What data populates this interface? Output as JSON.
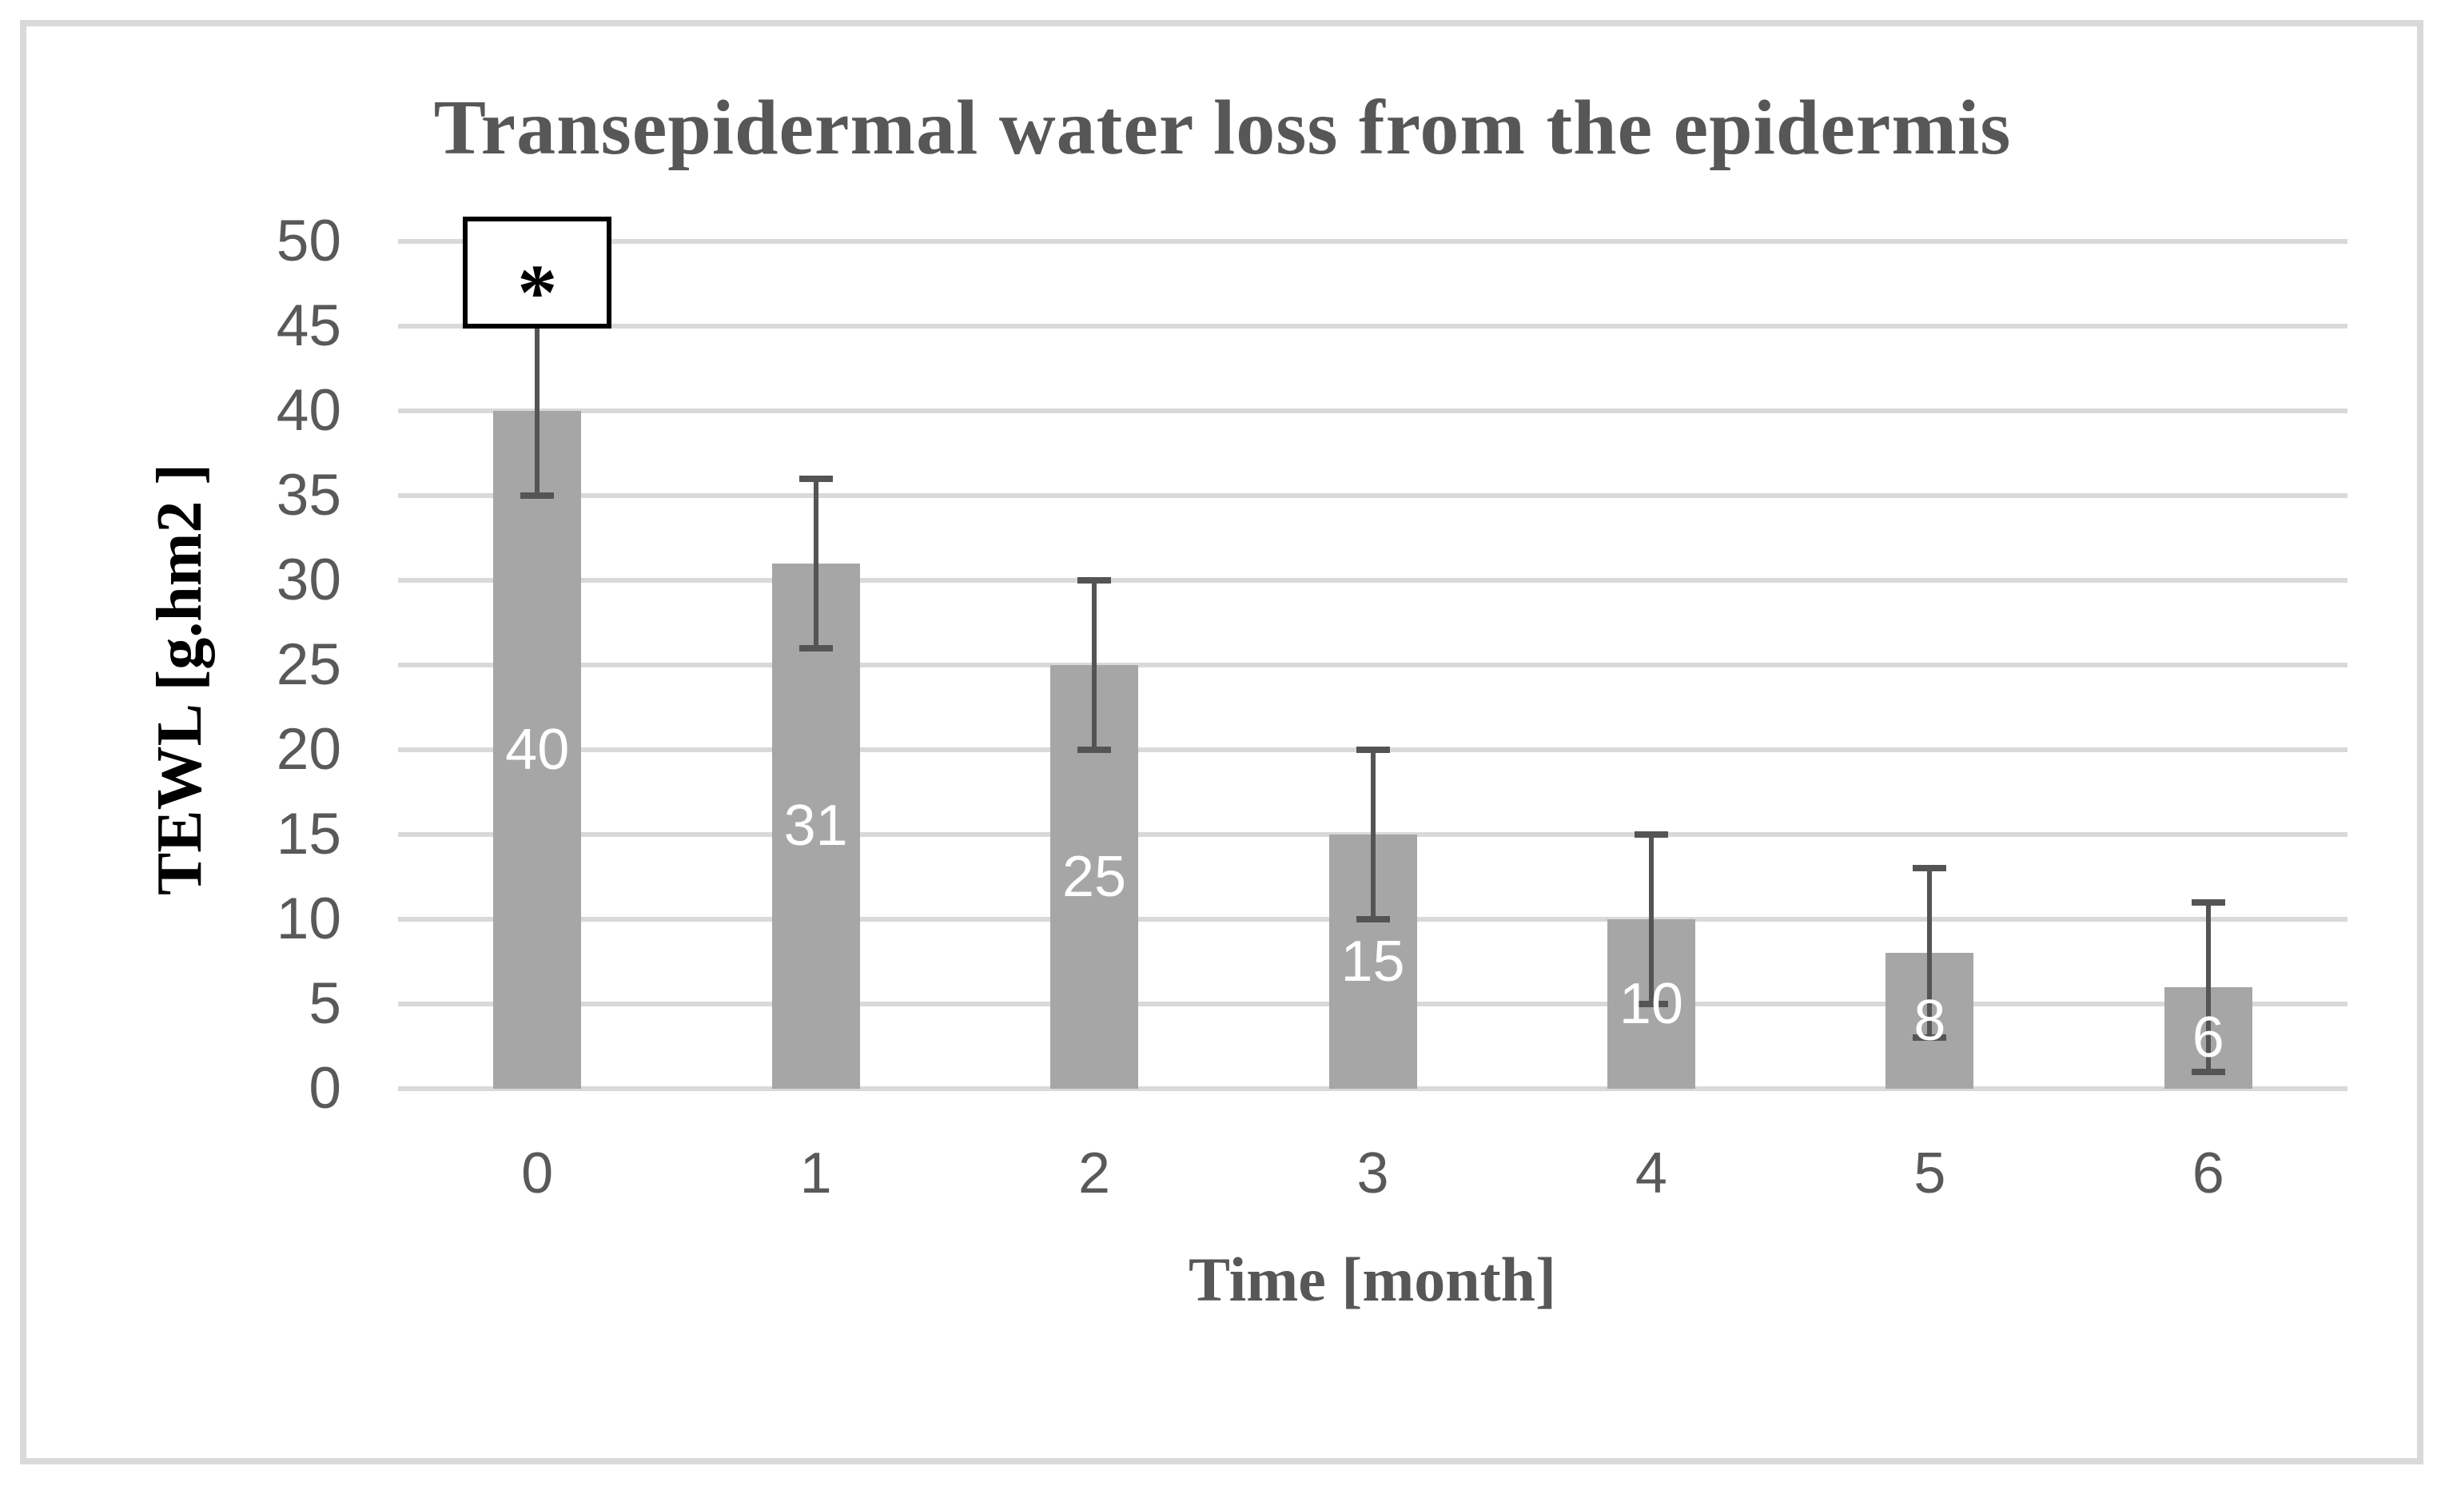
{
  "chart_data": {
    "type": "bar",
    "title": "Transepidermal water loss from the epidermis",
    "xlabel": "Time [month]",
    "ylabel": "TEWL [g.hm2 ]",
    "categories": [
      "0",
      "1",
      "2",
      "3",
      "4",
      "5",
      "6"
    ],
    "values": [
      40,
      31,
      25,
      15,
      10,
      8,
      6
    ],
    "bar_labels": [
      "40",
      "31",
      "25",
      "15",
      "10",
      "8",
      "6"
    ],
    "errors": [
      5,
      5,
      5,
      5,
      5,
      5,
      5
    ],
    "ylim": [
      0,
      50
    ],
    "ytick_step": 5,
    "ytick_labels": [
      "0",
      "5",
      "10",
      "15",
      "20",
      "25",
      "30",
      "35",
      "40",
      "45",
      "50"
    ],
    "grid": true,
    "legend": false,
    "annotation": {
      "symbol": "*",
      "category": "0"
    }
  },
  "colors": {
    "background": "#ffffff",
    "bar_fill": "#a6a6a6",
    "bar_label": "#ffffff",
    "gridline": "#d9d9d9",
    "error_bar": "#545454",
    "tick_label": "#595959",
    "title": "#575757",
    "x_axis_title": "#575757",
    "y_axis_title": "#000000",
    "annotation_border": "#000000",
    "frame_border": "#d9d9d9"
  }
}
